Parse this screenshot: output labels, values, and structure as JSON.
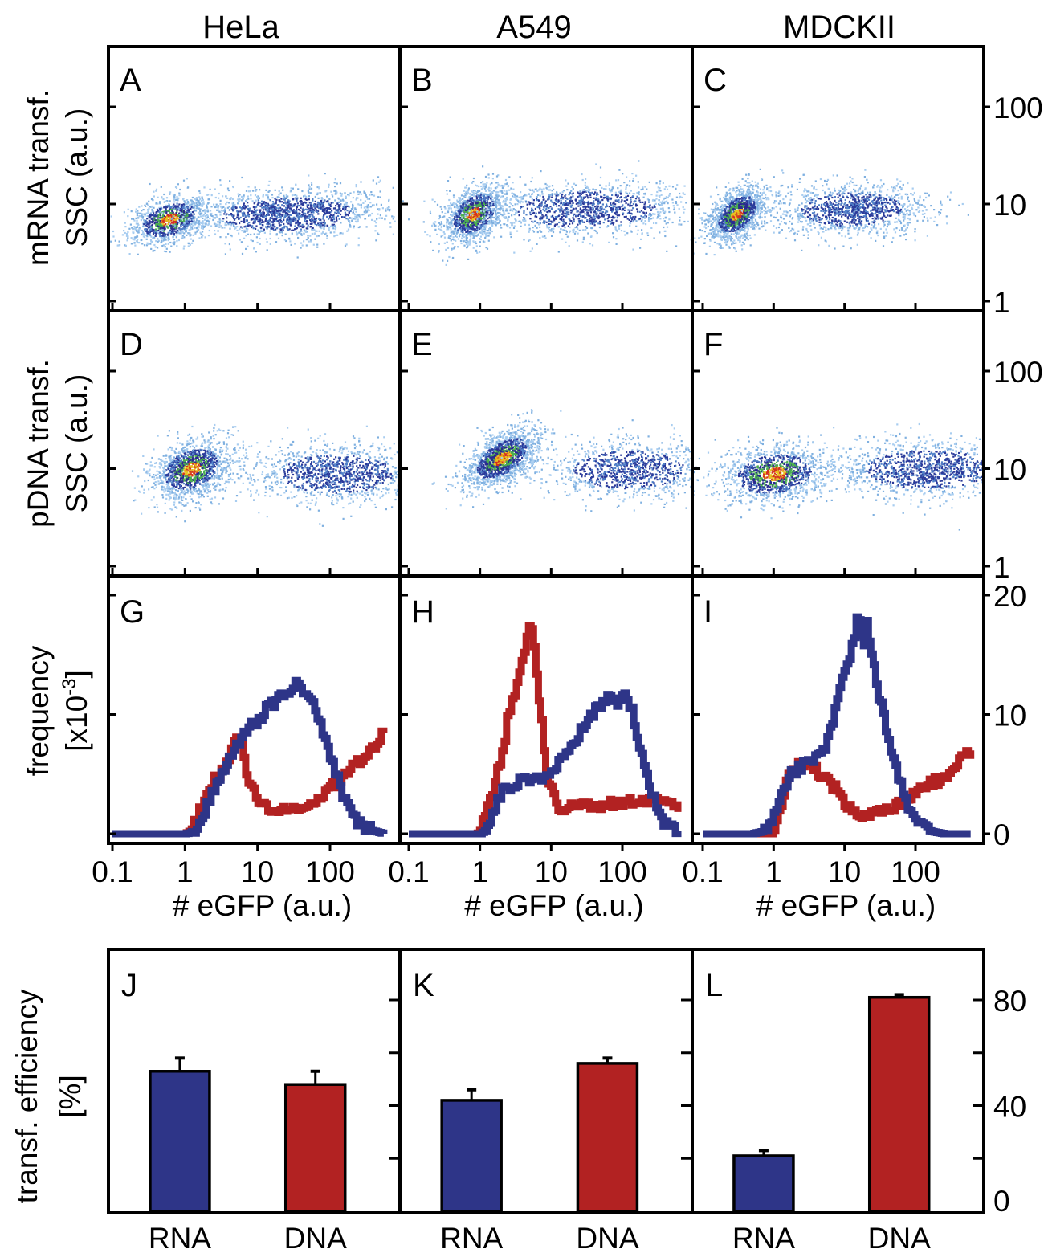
{
  "figure": {
    "columns": [
      "HeLa",
      "A549",
      "MDCKII"
    ],
    "row_labels": {
      "mrna": [
        "mRNA transf.",
        "SSC (a.u.)"
      ],
      "pdna": [
        "pDNA transf.",
        "SSC (a.u.)"
      ],
      "hist": [
        "frequency",
        "[x10",
        "-3",
        "]"
      ],
      "bar": [
        "transf. efficiency",
        "[%]"
      ]
    },
    "x_label": "# eGFP (a.u.)",
    "colors": {
      "rna": "#2e3588",
      "dna": "#b22222",
      "frame": "#000000"
    }
  },
  "chart_data": [
    {
      "type": "scatter",
      "row": "mRNA transfection",
      "xscale": "log",
      "yscale": "log",
      "xlim": [
        0.1,
        700
      ],
      "ylim": [
        1,
        300
      ],
      "xticks": [
        0.1,
        1,
        10,
        100
      ],
      "yticks": [
        1,
        10,
        100
      ],
      "ytick_labels": [
        "1",
        "10",
        "100"
      ],
      "ylabel": "SSC (a.u.)",
      "panels": [
        {
          "label": "A",
          "cell_line": "HeLa",
          "clusters": [
            {
              "x_center": 0.6,
              "y_center": 7,
              "x_spread_decades": 0.28,
              "y_spread_decades": 0.12,
              "tilt": 0.5,
              "weight": 0.4,
              "dense": true
            },
            {
              "x_center": 25,
              "y_center": 8,
              "x_spread_decades": 0.7,
              "y_spread_decades": 0.13,
              "tilt": 0.05,
              "weight": 0.6,
              "dense": false
            }
          ]
        },
        {
          "label": "B",
          "cell_line": "A549",
          "clusters": [
            {
              "x_center": 0.8,
              "y_center": 8,
              "x_spread_decades": 0.22,
              "y_spread_decades": 0.14,
              "tilt": 0.8,
              "weight": 0.5,
              "dense": true
            },
            {
              "x_center": 30,
              "y_center": 9,
              "x_spread_decades": 0.75,
              "y_spread_decades": 0.14,
              "tilt": 0.05,
              "weight": 0.5,
              "dense": false
            }
          ]
        },
        {
          "label": "C",
          "cell_line": "MDCKII",
          "clusters": [
            {
              "x_center": 0.3,
              "y_center": 8,
              "x_spread_decades": 0.2,
              "y_spread_decades": 0.13,
              "tilt": 0.9,
              "weight": 0.55,
              "dense": true
            },
            {
              "x_center": 12,
              "y_center": 9,
              "x_spread_decades": 0.55,
              "y_spread_decades": 0.13,
              "tilt": 0.05,
              "weight": 0.45,
              "dense": false
            }
          ]
        }
      ]
    },
    {
      "type": "scatter",
      "row": "pDNA transfection",
      "xscale": "log",
      "yscale": "log",
      "xlim": [
        0.1,
        700
      ],
      "ylim": [
        1,
        300
      ],
      "xticks": [
        0.1,
        1,
        10,
        100
      ],
      "yticks": [
        1,
        10,
        100
      ],
      "ytick_labels": [
        "1",
        "10",
        "100"
      ],
      "ylabel": "SSC (a.u.)",
      "panels": [
        {
          "label": "D",
          "cell_line": "HeLa",
          "clusters": [
            {
              "x_center": 1.2,
              "y_center": 10,
              "x_spread_decades": 0.28,
              "y_spread_decades": 0.15,
              "tilt": 0.5,
              "weight": 0.55,
              "dense": true
            },
            {
              "x_center": 120,
              "y_center": 9,
              "x_spread_decades": 0.6,
              "y_spread_decades": 0.15,
              "tilt": 0.0,
              "weight": 0.45,
              "dense": false
            }
          ]
        },
        {
          "label": "E",
          "cell_line": "A549",
          "clusters": [
            {
              "x_center": 2,
              "y_center": 13,
              "x_spread_decades": 0.27,
              "y_spread_decades": 0.13,
              "tilt": 0.9,
              "weight": 0.6,
              "dense": true
            },
            {
              "x_center": 120,
              "y_center": 10,
              "x_spread_decades": 0.6,
              "y_spread_decades": 0.15,
              "tilt": 0.0,
              "weight": 0.4,
              "dense": false
            }
          ]
        },
        {
          "label": "F",
          "cell_line": "MDCKII",
          "clusters": [
            {
              "x_center": 1.0,
              "y_center": 9,
              "x_spread_decades": 0.4,
              "y_spread_decades": 0.15,
              "tilt": 0.2,
              "weight": 0.5,
              "dense": true
            },
            {
              "x_center": 150,
              "y_center": 10,
              "x_spread_decades": 0.7,
              "y_spread_decades": 0.15,
              "tilt": 0.0,
              "weight": 0.5,
              "dense": false
            }
          ]
        }
      ]
    },
    {
      "type": "line",
      "row": "eGFP histograms",
      "xscale": "log",
      "xlim": [
        0.08,
        700
      ],
      "ylim": [
        0,
        20
      ],
      "xticks": [
        0.1,
        1,
        10,
        100
      ],
      "xtick_labels": [
        "0.1",
        "1",
        "10",
        "100"
      ],
      "yticks": [
        0,
        10,
        20
      ],
      "ytick_labels": [
        "0",
        "10",
        "20"
      ],
      "xlabel": "# eGFP (a.u.)",
      "ylabel": "frequency [x10^-3]",
      "panels": [
        {
          "label": "G",
          "cell_line": "HeLa",
          "series": [
            {
              "name": "pDNA",
              "color": "#b22222",
              "x": [
                0.1,
                1.0,
                1.2,
                1.6,
                2.0,
                2.5,
                3.2,
                4.0,
                5.0,
                6.0,
                7.0,
                8.0,
                10,
                13,
                18,
                25,
                35,
                50,
                70,
                100,
                140,
                200,
                300,
                400,
                550
              ],
              "y": [
                0,
                0,
                0.3,
                2.0,
                3.5,
                4.5,
                5.5,
                6.5,
                8.0,
                7.0,
                4.5,
                4.0,
                3.0,
                2.2,
                2.0,
                1.8,
                1.9,
                2.4,
                3.0,
                3.8,
                4.8,
                5.5,
                6.5,
                7.2,
                8.5
              ]
            },
            {
              "name": "mRNA",
              "color": "#2e3588",
              "x": [
                0.1,
                1.0,
                1.2,
                1.5,
                2.0,
                2.5,
                3.2,
                4.0,
                5.0,
                6.0,
                8.0,
                10,
                13,
                18,
                25,
                30,
                35,
                45,
                55,
                70,
                90,
                110,
                140,
                180,
                250,
                350,
                550
              ],
              "y": [
                0,
                0,
                0.1,
                0.8,
                2.5,
                4.0,
                5.2,
                6.2,
                7.2,
                8.5,
                9.0,
                9.5,
                10.5,
                11.3,
                12.0,
                12.5,
                13.0,
                11.5,
                10.8,
                9.5,
                7.5,
                5.5,
                3.5,
                1.8,
                0.8,
                0.3,
                0
              ]
            }
          ]
        },
        {
          "label": "H",
          "cell_line": "A549",
          "series": [
            {
              "name": "pDNA",
              "color": "#b22222",
              "x": [
                0.1,
                0.9,
                1.0,
                1.3,
                1.6,
                2.0,
                2.5,
                3.0,
                3.5,
                4.0,
                4.5,
                5.0,
                5.5,
                6.5,
                7.5,
                8.5,
                10,
                12,
                15,
                20,
                30,
                50,
                80,
                120,
                200,
                300,
                450,
                600
              ],
              "y": [
                0,
                0,
                0.3,
                2.5,
                4.5,
                6.5,
                10.5,
                12.0,
                13.5,
                15.0,
                16.5,
                17.5,
                16.0,
                12.0,
                8.0,
                5.0,
                3.5,
                2.5,
                2.0,
                2.2,
                2.4,
                2.3,
                2.6,
                2.8,
                2.9,
                3.0,
                2.8,
                2.0
              ]
            },
            {
              "name": "mRNA",
              "color": "#2e3588",
              "x": [
                0.1,
                1.0,
                1.2,
                1.5,
                2.0,
                3.0,
                4.0,
                5.0,
                6.0,
                8.0,
                10,
                13,
                18,
                25,
                35,
                45,
                60,
                80,
                100,
                130,
                160,
                200,
                250,
                300,
                400,
                600
              ],
              "y": [
                0,
                0,
                0.3,
                1.8,
                3.5,
                4.2,
                4.4,
                4.6,
                4.8,
                4.9,
                5.2,
                6.0,
                7.0,
                8.5,
                9.8,
                10.8,
                11.5,
                11.0,
                11.8,
                10.5,
                8.0,
                5.5,
                3.5,
                2.0,
                0.8,
                0.2
              ]
            }
          ]
        },
        {
          "label": "I",
          "cell_line": "MDCKII",
          "series": [
            {
              "name": "pDNA",
              "color": "#b22222",
              "x": [
                0.1,
                0.8,
                1.0,
                1.2,
                1.5,
                2.0,
                2.5,
                3.0,
                4.0,
                5.0,
                6.5,
                8.0,
                10,
                13,
                18,
                25,
                35,
                50,
                70,
                100,
                140,
                200,
                300,
                400,
                600
              ],
              "y": [
                0,
                0,
                0.5,
                2.0,
                4.5,
                5.5,
                6.0,
                6.0,
                5.2,
                4.8,
                4.0,
                3.5,
                2.5,
                1.8,
                1.6,
                1.8,
                2.0,
                2.2,
                2.8,
                3.3,
                4.0,
                4.5,
                5.0,
                6.0,
                7.0
              ]
            },
            {
              "name": "mRNA",
              "color": "#2e3588",
              "x": [
                0.1,
                0.5,
                0.7,
                1.0,
                1.3,
                1.7,
                2.2,
                3.0,
                4.0,
                5.0,
                6.0,
                7.0,
                8.0,
                10,
                12,
                14,
                16,
                18,
                20,
                25,
                30,
                40,
                55,
                70,
                90,
                120,
                160,
                250,
                600
              ],
              "y": [
                0,
                0,
                0.2,
                1.5,
                3.5,
                5.0,
                5.5,
                6.0,
                6.2,
                6.8,
                8.5,
                10.0,
                12.0,
                13.5,
                15.0,
                17.5,
                18.3,
                15.0,
                17.5,
                14.5,
                11.5,
                8.0,
                5.0,
                3.0,
                1.5,
                0.7,
                0.2,
                0,
                0
              ]
            }
          ]
        }
      ]
    },
    {
      "type": "bar",
      "row": "transfection efficiency",
      "categories": [
        "RNA",
        "DNA"
      ],
      "ylabel": "transf. efficiency [%]",
      "ylim": [
        0,
        100
      ],
      "yticks": [
        0,
        20,
        40,
        60,
        80
      ],
      "ytick_labels": [
        "0",
        "",
        "40",
        "",
        "80"
      ],
      "panels": [
        {
          "label": "J",
          "cell_line": "HeLa",
          "values": [
            53,
            48
          ],
          "errors": [
            5,
            5
          ],
          "colors": [
            "#2e3588",
            "#b22222"
          ]
        },
        {
          "label": "K",
          "cell_line": "A549",
          "values": [
            42,
            56
          ],
          "errors": [
            4,
            2
          ],
          "colors": [
            "#2e3588",
            "#b22222"
          ]
        },
        {
          "label": "L",
          "cell_line": "MDCKII",
          "values": [
            21,
            81
          ],
          "errors": [
            2,
            1
          ],
          "colors": [
            "#2e3588",
            "#b22222"
          ]
        }
      ]
    }
  ]
}
